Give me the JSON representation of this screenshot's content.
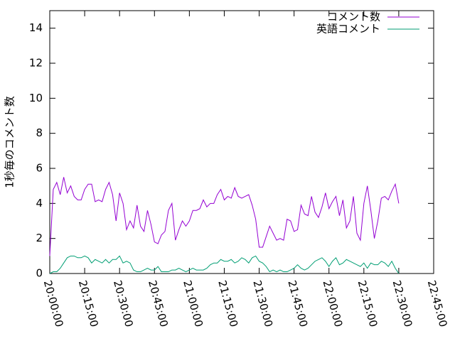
{
  "chart_data": {
    "type": "line",
    "ylabel": "1秒毎のコメント数",
    "x": [
      "20:00:00",
      "20:01:30",
      "20:03:00",
      "20:04:30",
      "20:06:00",
      "20:07:30",
      "20:09:00",
      "20:10:30",
      "20:12:00",
      "20:13:30",
      "20:15:00",
      "20:16:30",
      "20:18:00",
      "20:19:30",
      "20:21:00",
      "20:22:30",
      "20:24:00",
      "20:25:30",
      "20:27:00",
      "20:28:30",
      "20:30:00",
      "20:31:30",
      "20:33:00",
      "20:34:30",
      "20:36:00",
      "20:37:30",
      "20:39:00",
      "20:40:30",
      "20:42:00",
      "20:43:30",
      "20:45:00",
      "20:46:30",
      "20:48:00",
      "20:49:30",
      "20:51:00",
      "20:52:30",
      "20:54:00",
      "20:55:30",
      "20:57:00",
      "20:58:30",
      "21:00:00",
      "21:01:30",
      "21:03:00",
      "21:04:30",
      "21:06:00",
      "21:07:30",
      "21:09:00",
      "21:10:30",
      "21:12:00",
      "21:13:30",
      "21:15:00",
      "21:16:30",
      "21:18:00",
      "21:19:30",
      "21:21:00",
      "21:22:30",
      "21:24:00",
      "21:25:30",
      "21:27:00",
      "21:28:30",
      "21:30:00",
      "21:31:30",
      "21:33:00",
      "21:34:30",
      "21:36:00",
      "21:37:30",
      "21:39:00",
      "21:40:30",
      "21:42:00",
      "21:43:30",
      "21:45:00",
      "21:46:30",
      "21:48:00",
      "21:49:30",
      "21:51:00",
      "21:52:30",
      "21:54:00",
      "21:55:30",
      "21:57:00",
      "21:58:30",
      "22:00:00",
      "22:01:30",
      "22:03:00",
      "22:04:30",
      "22:06:00",
      "22:07:30",
      "22:09:00",
      "22:10:30",
      "22:12:00",
      "22:13:30",
      "22:15:00",
      "22:16:30",
      "22:18:00",
      "22:19:30",
      "22:21:00",
      "22:22:30",
      "22:24:00",
      "22:25:30",
      "22:27:00",
      "22:28:30",
      "22:30:00"
    ],
    "series": [
      {
        "name": "コメント数",
        "color": "#9400d3",
        "values": [
          1.0,
          4.8,
          5.2,
          4.5,
          5.5,
          4.6,
          5.0,
          4.4,
          4.2,
          4.2,
          4.8,
          5.1,
          5.1,
          4.1,
          4.2,
          4.1,
          4.8,
          5.2,
          4.5,
          3.0,
          4.6,
          4.0,
          2.5,
          3.0,
          2.6,
          3.9,
          2.7,
          2.4,
          3.6,
          2.8,
          1.8,
          1.7,
          2.2,
          2.4,
          3.6,
          4.0,
          1.9,
          2.5,
          3.0,
          2.7,
          3.0,
          3.6,
          3.6,
          3.7,
          4.2,
          3.8,
          4.0,
          4.0,
          4.5,
          4.8,
          4.2,
          4.4,
          4.3,
          4.9,
          4.4,
          4.3,
          4.4,
          4.5,
          3.9,
          3.1,
          1.5,
          1.5,
          2.1,
          2.7,
          2.3,
          1.9,
          2.0,
          1.9,
          3.1,
          3.0,
          2.4,
          2.5,
          3.9,
          3.4,
          3.3,
          4.4,
          3.5,
          3.2,
          3.8,
          4.6,
          3.7,
          4.1,
          4.4,
          3.3,
          4.2,
          2.6,
          3.0,
          4.4,
          2.3,
          1.9,
          4.0,
          5.0,
          3.6,
          2.0,
          3.0,
          4.3,
          4.4,
          4.2,
          4.7,
          5.1,
          4.0
        ]
      },
      {
        "name": "英語コメント",
        "color": "#009e73",
        "values": [
          0.0,
          0.1,
          0.1,
          0.3,
          0.6,
          0.9,
          1.0,
          1.0,
          0.9,
          0.9,
          1.0,
          0.9,
          0.6,
          0.8,
          0.7,
          0.6,
          0.8,
          0.6,
          0.8,
          0.8,
          1.0,
          0.6,
          0.7,
          0.6,
          0.2,
          0.1,
          0.1,
          0.2,
          0.3,
          0.2,
          0.2,
          0.4,
          0.1,
          0.1,
          0.1,
          0.2,
          0.2,
          0.3,
          0.2,
          0.1,
          0.2,
          0.3,
          0.2,
          0.2,
          0.2,
          0.3,
          0.5,
          0.6,
          0.6,
          0.8,
          0.7,
          0.7,
          0.8,
          0.6,
          0.7,
          0.9,
          0.8,
          0.6,
          0.9,
          1.0,
          0.7,
          0.6,
          0.4,
          0.1,
          0.2,
          0.1,
          0.2,
          0.1,
          0.1,
          0.2,
          0.3,
          0.5,
          0.3,
          0.2,
          0.3,
          0.5,
          0.7,
          0.8,
          0.9,
          0.7,
          0.4,
          0.7,
          0.9,
          0.5,
          0.6,
          0.8,
          0.7,
          0.6,
          0.5,
          0.4,
          0.6,
          0.3,
          0.6,
          0.5,
          0.5,
          0.7,
          0.6,
          0.4,
          0.7,
          0.3,
          0.0
        ]
      }
    ],
    "xlim": [
      "20:00:00",
      "22:45:00"
    ],
    "xticks": [
      "20:00:00",
      "20:15:00",
      "20:30:00",
      "20:45:00",
      "21:00:00",
      "21:15:00",
      "21:30:00",
      "21:45:00",
      "22:00:00",
      "22:15:00",
      "22:30:00",
      "22:45:00"
    ],
    "ylim": [
      0,
      15
    ],
    "yticks": [
      0,
      2,
      4,
      6,
      8,
      10,
      12,
      14
    ],
    "legend": "top-right"
  }
}
